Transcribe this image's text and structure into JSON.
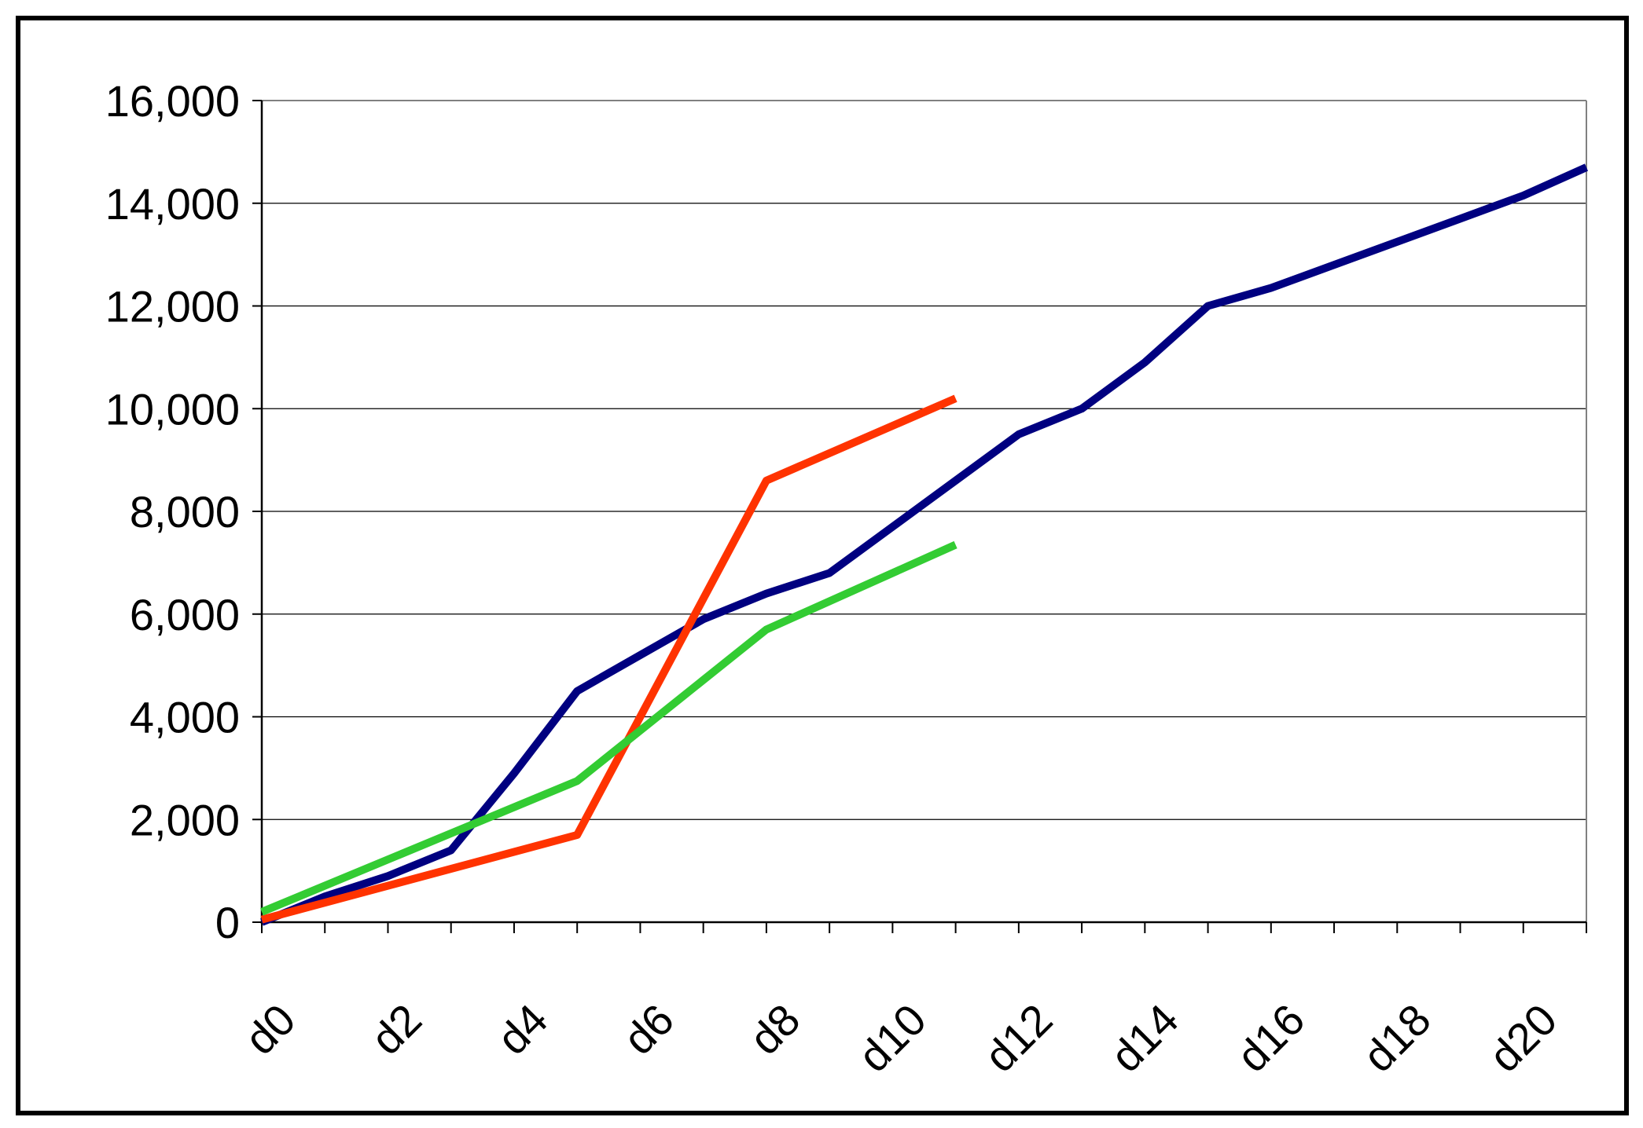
{
  "chart_data": {
    "type": "line",
    "title": "",
    "xlabel": "",
    "ylabel": "",
    "ylim": [
      0,
      16000
    ],
    "y_ticks": [
      "0",
      "2,000",
      "4,000",
      "6,000",
      "8,000",
      "10,000",
      "12,000",
      "14,000",
      "16,000"
    ],
    "x_tick_labels": [
      "d0",
      "d2",
      "d4",
      "d6",
      "d8",
      "d10",
      "d12",
      "d14",
      "d16",
      "d18",
      "d20"
    ],
    "grid": "horizontal",
    "legend": "none",
    "series": [
      {
        "color": "#000080",
        "points": [
          [
            0,
            0
          ],
          [
            1,
            500
          ],
          [
            2,
            900
          ],
          [
            3,
            1400
          ],
          [
            4,
            2900
          ],
          [
            5,
            4500
          ],
          [
            6,
            5200
          ],
          [
            7,
            5900
          ],
          [
            8,
            6400
          ],
          [
            9,
            6800
          ],
          [
            10,
            7700
          ],
          [
            11,
            8600
          ],
          [
            12,
            9500
          ],
          [
            13,
            10000
          ],
          [
            14,
            10900
          ],
          [
            15,
            12000
          ],
          [
            16,
            12350
          ],
          [
            17,
            12800
          ],
          [
            18,
            13250
          ],
          [
            19,
            13700
          ],
          [
            20,
            14150
          ],
          [
            21,
            14700
          ]
        ]
      },
      {
        "color": "#ff3300",
        "points": [
          [
            0,
            50
          ],
          [
            5,
            1700
          ],
          [
            8,
            8600
          ],
          [
            11,
            10200
          ]
        ]
      },
      {
        "color": "#33cc33",
        "points": [
          [
            0,
            200
          ],
          [
            5,
            2750
          ],
          [
            8,
            5700
          ],
          [
            11,
            7350
          ]
        ]
      }
    ]
  }
}
